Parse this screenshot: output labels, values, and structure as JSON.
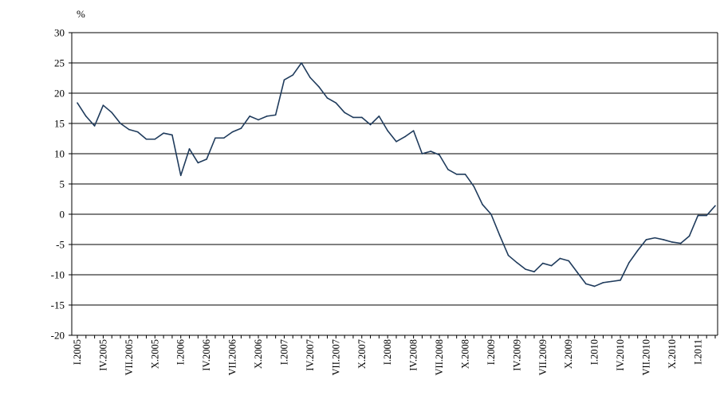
{
  "chart_data": {
    "type": "line",
    "unit_label": "%",
    "ylim": [
      -20,
      30
    ],
    "y_ticks": [
      "30",
      "25",
      "20",
      "15",
      "10",
      "5",
      "0",
      "-5",
      "-10",
      "-15",
      "-20"
    ],
    "x_tick_labels": [
      "I.2005",
      "IV.2005",
      "VII.2005",
      "X.2005",
      "I.2006",
      "IV.2006",
      "VII.2006",
      "X.2006",
      "I.2007",
      "IV.2007",
      "VII.2007",
      "X.2007",
      "I.2008",
      "IV.2008",
      "VII.2008",
      "X.2008",
      "I.2009",
      "IV.2009",
      "VII.2009",
      "X.2009",
      "I.2010",
      "IV.2010",
      "VII.2010",
      "X.2010",
      "I.2011"
    ],
    "grid": true,
    "line_color": "#1f3b5c",
    "series": [
      {
        "values": [
          18.4,
          16.2,
          14.6,
          18.0,
          16.8,
          15.0,
          14.0,
          13.6,
          12.4,
          12.4,
          13.4,
          13.1,
          6.4,
          10.8,
          8.5,
          9.1,
          12.6,
          12.6,
          13.6,
          14.2,
          16.2,
          15.6,
          16.2,
          16.4,
          22.2,
          23.0,
          25.0,
          22.6,
          21.1,
          19.2,
          18.4,
          16.8,
          16.0,
          16.0,
          14.8,
          16.2,
          13.8,
          12.0,
          12.8,
          13.8,
          10.0,
          10.4,
          9.8,
          7.4,
          6.6,
          6.6,
          4.6,
          1.6,
          0.0,
          -3.5,
          -6.8,
          -8.0,
          -9.1,
          -9.5,
          -8.1,
          -8.5,
          -7.3,
          -7.7,
          -9.6,
          -11.5,
          -11.9,
          -11.3,
          -11.1,
          -10.9,
          -8.0,
          -6.0,
          -4.2,
          -3.9,
          -4.2,
          -4.6,
          -4.8,
          -3.6,
          -0.2,
          -0.2,
          1.4
        ]
      }
    ]
  }
}
